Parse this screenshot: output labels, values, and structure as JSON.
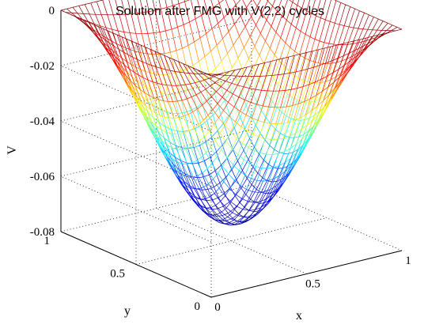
{
  "chart_data": {
    "type": "surface",
    "title": "Solution after FMG with V(2,2) cycles",
    "xlabel": "x",
    "ylabel": "y",
    "zlabel": "V",
    "xlim": [
      0,
      1
    ],
    "ylim": [
      0,
      1
    ],
    "zlim": [
      -0.08,
      0
    ],
    "xticks": [
      0,
      0.5,
      1
    ],
    "yticks": [
      0,
      0.5,
      1
    ],
    "zticks": [
      0,
      -0.02,
      -0.04,
      -0.06,
      -0.08
    ],
    "xtick_labels": [
      "0",
      "0.5",
      "1"
    ],
    "ytick_labels": [
      "0",
      "0.5",
      "1"
    ],
    "ztick_labels": [
      "0",
      "-0.02",
      "-0.04",
      "-0.06",
      "-0.08"
    ],
    "grid": true,
    "mesh_points": 33,
    "surface_min": -0.0737,
    "surface_formula": "V(x,y) = -0.0737 * sin(pi*x) * sin(pi*y)",
    "colormap": "jet",
    "colormap_stops": [
      "#00008f",
      "#0000ff",
      "#00ffff",
      "#ffff00",
      "#ff0000",
      "#800000"
    ]
  }
}
